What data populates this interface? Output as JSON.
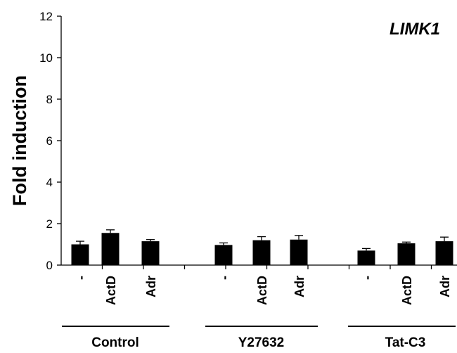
{
  "chart_data": {
    "type": "bar",
    "title": "LIMK1",
    "ylabel": "Fold induction",
    "xlabel": "",
    "ylim": [
      0,
      12
    ],
    "yticks": [
      0,
      2,
      4,
      6,
      8,
      10,
      12
    ],
    "grid": false,
    "groups": [
      {
        "label": "Control",
        "categories": [
          "-",
          "ActD",
          "Adr"
        ],
        "values": [
          1.0,
          1.55,
          1.15
        ],
        "errors": [
          0.15,
          0.15,
          0.08
        ]
      },
      {
        "label": "Y27632",
        "categories": [
          "-",
          "ActD",
          "Adr"
        ],
        "values": [
          0.97,
          1.2,
          1.23
        ],
        "errors": [
          0.1,
          0.17,
          0.2
        ]
      },
      {
        "label": "Tat-C3",
        "categories": [
          "-",
          "ActD",
          "Adr"
        ],
        "values": [
          0.7,
          1.05,
          1.15
        ],
        "errors": [
          0.1,
          0.06,
          0.2
        ]
      }
    ],
    "colors": {
      "bar": "#000000",
      "axis": "#000000"
    }
  }
}
